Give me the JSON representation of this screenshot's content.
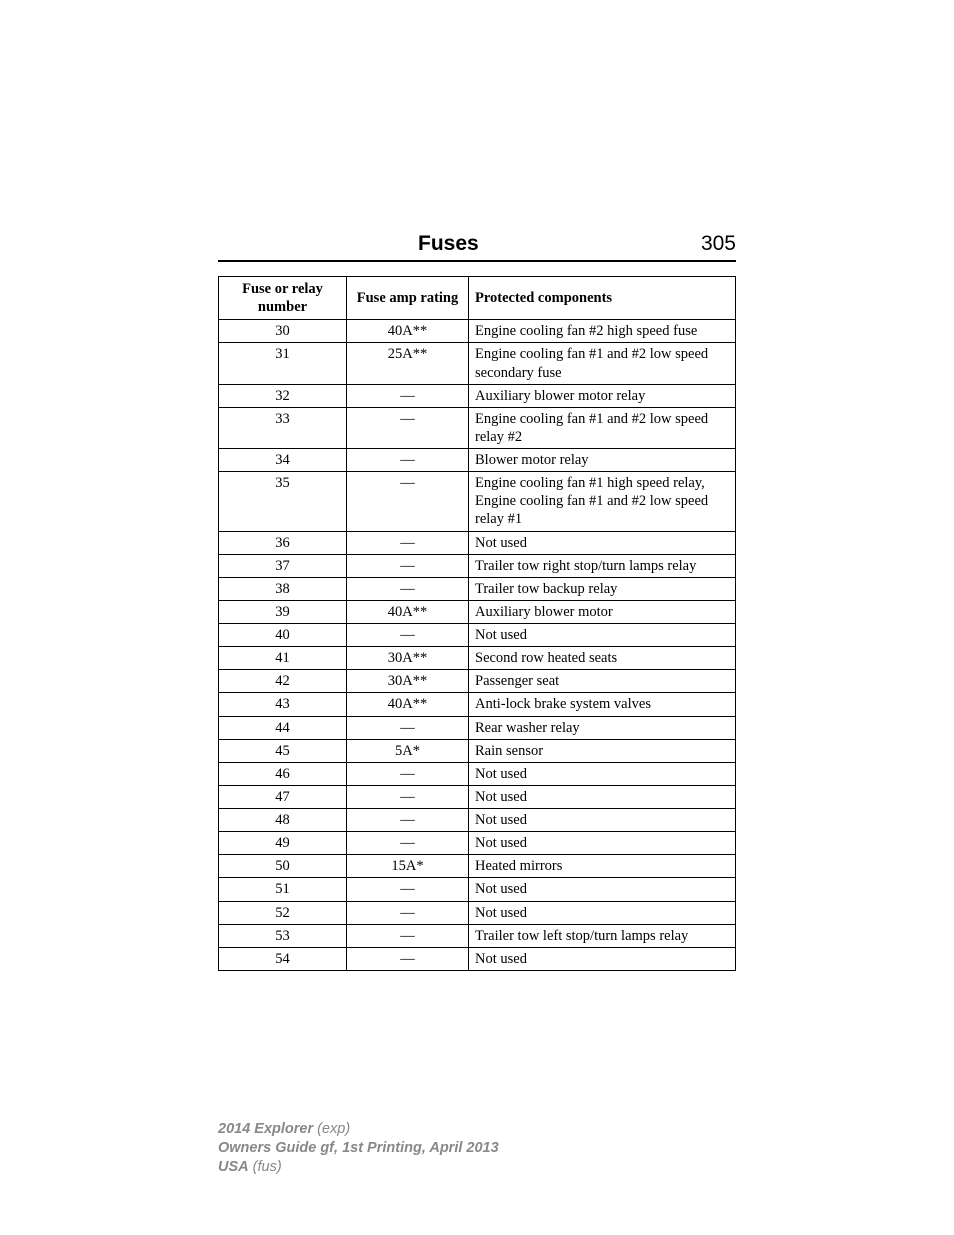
{
  "header": {
    "title": "Fuses",
    "page_number": "305"
  },
  "table": {
    "columns": [
      "Fuse or relay number",
      "Fuse amp rating",
      "Protected components"
    ],
    "rows": [
      {
        "num": "30",
        "amp": "40A**",
        "comp": "Engine cooling fan #2 high speed fuse"
      },
      {
        "num": "31",
        "amp": "25A**",
        "comp": "Engine cooling fan #1 and #2 low speed secondary fuse"
      },
      {
        "num": "32",
        "amp": "—",
        "comp": "Auxiliary blower motor relay"
      },
      {
        "num": "33",
        "amp": "—",
        "comp": "Engine cooling fan #1 and #2 low speed relay #2"
      },
      {
        "num": "34",
        "amp": "—",
        "comp": "Blower motor relay"
      },
      {
        "num": "35",
        "amp": "—",
        "comp": "Engine cooling fan #1 high speed relay, Engine cooling fan #1 and #2 low speed relay #1"
      },
      {
        "num": "36",
        "amp": "—",
        "comp": "Not used"
      },
      {
        "num": "37",
        "amp": "—",
        "comp": "Trailer tow right stop/turn lamps relay"
      },
      {
        "num": "38",
        "amp": "—",
        "comp": "Trailer tow backup relay"
      },
      {
        "num": "39",
        "amp": "40A**",
        "comp": "Auxiliary blower motor"
      },
      {
        "num": "40",
        "amp": "—",
        "comp": "Not used"
      },
      {
        "num": "41",
        "amp": "30A**",
        "comp": "Second row heated seats"
      },
      {
        "num": "42",
        "amp": "30A**",
        "comp": "Passenger seat"
      },
      {
        "num": "43",
        "amp": "40A**",
        "comp": "Anti-lock brake system valves"
      },
      {
        "num": "44",
        "amp": "—",
        "comp": "Rear washer relay"
      },
      {
        "num": "45",
        "amp": "5A*",
        "comp": "Rain sensor"
      },
      {
        "num": "46",
        "amp": "—",
        "comp": "Not used"
      },
      {
        "num": "47",
        "amp": "—",
        "comp": "Not used"
      },
      {
        "num": "48",
        "amp": "—",
        "comp": "Not used"
      },
      {
        "num": "49",
        "amp": "—",
        "comp": "Not used"
      },
      {
        "num": "50",
        "amp": "15A*",
        "comp": "Heated mirrors"
      },
      {
        "num": "51",
        "amp": "—",
        "comp": "Not used"
      },
      {
        "num": "52",
        "amp": "—",
        "comp": "Not used"
      },
      {
        "num": "53",
        "amp": "—",
        "comp": "Trailer tow left stop/turn lamps relay"
      },
      {
        "num": "54",
        "amp": "—",
        "comp": "Not used"
      }
    ]
  },
  "footer": {
    "line1_bold": "2014 Explorer",
    "line1_rest": " (exp)",
    "line2_bold": "Owners Guide gf, 1st Printing, April 2013",
    "line3_bold": "USA",
    "line3_rest": " (fus)"
  }
}
